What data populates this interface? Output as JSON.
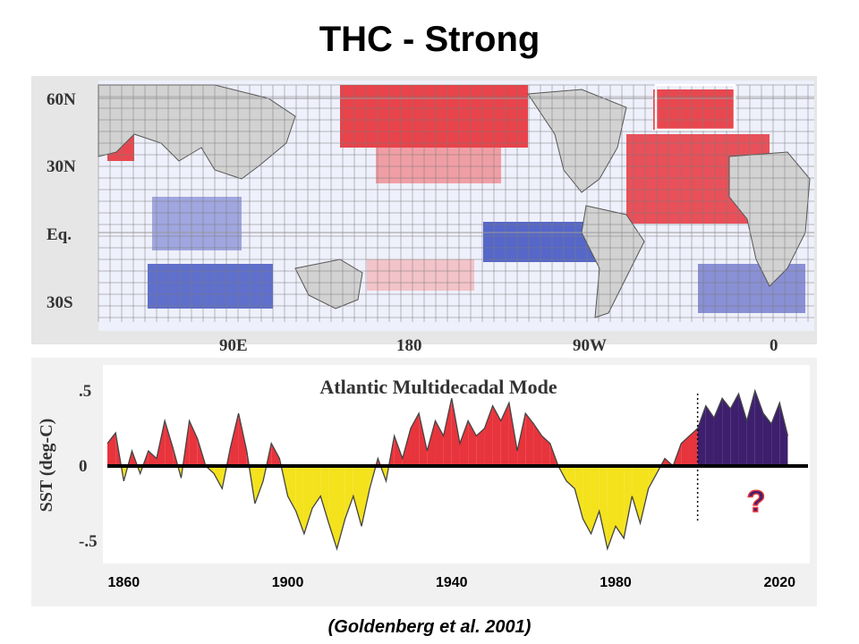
{
  "slide": {
    "title": "THC - Strong",
    "citation": "(Goldenberg et al. 2001)",
    "question_mark": "?"
  },
  "map": {
    "lat_labels": [
      "60N",
      "30N",
      "Eq.",
      "30S"
    ],
    "lon_labels": [
      "90E",
      "180",
      "90W",
      "0"
    ],
    "colors": {
      "warm": "#e8343c",
      "cool": "#3b4fc0",
      "ocean": "#eef0fb",
      "land": "#c8c8c8"
    }
  },
  "chart_data": {
    "type": "area",
    "title": "Atlantic Multidecadal Mode",
    "ylabel": "SST (deg-C)",
    "xlabel": "",
    "xlim": [
      1856,
      2023
    ],
    "ylim": [
      -0.6,
      0.6
    ],
    "yticks": [
      ".5",
      "0",
      "-.5"
    ],
    "xticks": [
      1860,
      1900,
      1940,
      1980,
      2020
    ],
    "observed_end": 2000,
    "series": [
      {
        "role": "observed",
        "x": [
          1856,
          1858,
          1860,
          1862,
          1864,
          1866,
          1868,
          1870,
          1872,
          1874,
          1876,
          1878,
          1880,
          1882,
          1884,
          1886,
          1888,
          1890,
          1892,
          1894,
          1896,
          1898,
          1900,
          1902,
          1904,
          1906,
          1908,
          1910,
          1912,
          1914,
          1916,
          1918,
          1920,
          1922,
          1924,
          1926,
          1928,
          1930,
          1932,
          1934,
          1936,
          1938,
          1940,
          1942,
          1944,
          1946,
          1948,
          1950,
          1952,
          1954,
          1956,
          1958,
          1960,
          1962,
          1964,
          1966,
          1968,
          1970,
          1972,
          1974,
          1976,
          1978,
          1980,
          1982,
          1984,
          1986,
          1988,
          1990,
          1992,
          1994,
          1996,
          1998,
          2000
        ],
        "y": [
          0.15,
          0.22,
          -0.1,
          0.1,
          -0.05,
          0.1,
          0.05,
          0.3,
          0.12,
          -0.08,
          0.3,
          0.18,
          0.0,
          -0.05,
          -0.15,
          0.12,
          0.35,
          0.1,
          -0.25,
          -0.1,
          0.15,
          0.05,
          -0.2,
          -0.3,
          -0.45,
          -0.28,
          -0.2,
          -0.38,
          -0.55,
          -0.35,
          -0.2,
          -0.4,
          -0.15,
          0.05,
          -0.1,
          0.2,
          0.05,
          0.25,
          0.35,
          0.1,
          0.3,
          0.2,
          0.45,
          0.15,
          0.3,
          0.2,
          0.25,
          0.4,
          0.3,
          0.42,
          0.1,
          0.35,
          0.28,
          0.2,
          0.15,
          0.0,
          -0.1,
          -0.15,
          -0.35,
          -0.45,
          -0.3,
          -0.55,
          -0.4,
          -0.48,
          -0.2,
          -0.38,
          -0.15,
          -0.05,
          0.05,
          0.0,
          0.15,
          0.2,
          0.25
        ],
        "positive_color": "#e8343c",
        "negative_color": "#f4e21c"
      },
      {
        "role": "projected",
        "x": [
          2000,
          2002,
          2004,
          2006,
          2008,
          2010,
          2012,
          2014,
          2016,
          2018,
          2020,
          2022
        ],
        "y": [
          0.25,
          0.4,
          0.32,
          0.45,
          0.38,
          0.48,
          0.3,
          0.5,
          0.35,
          0.28,
          0.42,
          0.2
        ],
        "positive_color": "#3d1f6e"
      }
    ]
  }
}
